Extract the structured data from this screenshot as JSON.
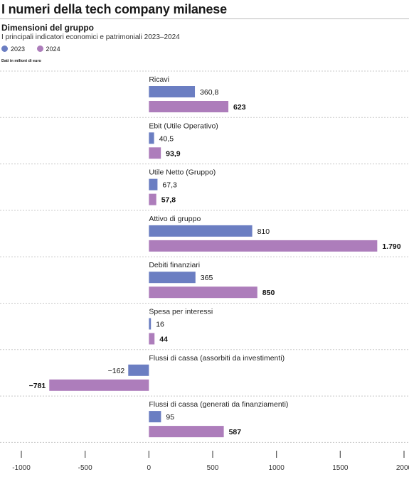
{
  "header": {
    "title": "I numeri della tech company milanese"
  },
  "colors": {
    "2023": "#6b7ec2",
    "2024": "#ad7dbb"
  },
  "chart_data": {
    "type": "bar",
    "orientation": "horizontal",
    "title": "Dimensioni del gruppo",
    "subtitle": "I principali indicatori economici e patrimoniali 2023–2024",
    "unit_note": "Dati in milioni di euro",
    "legend": [
      {
        "name": "2023",
        "color": "#6b7ec2"
      },
      {
        "name": "2024",
        "color": "#ad7dbb"
      }
    ],
    "legend_position": "top-left",
    "grid": false,
    "xlim": [
      -1000,
      2000
    ],
    "x_ticks": [
      -1000,
      -500,
      0,
      500,
      1000,
      1500,
      2000
    ],
    "x_tick_labels": [
      "-1000",
      "-500",
      "0",
      "500",
      "1000",
      "1500",
      "2000"
    ],
    "categories": [
      "Ricavi",
      "Ebit (Utile Operativo)",
      "Utile Netto (Gruppo)",
      "Attivo di gruppo",
      "Debiti finanziari",
      "Spesa per interessi",
      "Flussi di cassa (assorbiti da investimenti)",
      "Flussi di cassa (generati da finanziamenti)"
    ],
    "series": [
      {
        "name": "2023",
        "values": [
          360.8,
          40.5,
          67.3,
          810,
          365,
          16,
          -162,
          95
        ],
        "labels": [
          "360,8",
          "40,5",
          "67,3",
          "810",
          "365",
          "16",
          "−162",
          "95"
        ]
      },
      {
        "name": "2024",
        "values": [
          623,
          93.9,
          57.8,
          1790,
          850,
          44,
          -781,
          587
        ],
        "labels": [
          "623",
          "93,9",
          "57,8",
          "1.790",
          "850",
          "44",
          "−781",
          "587"
        ]
      }
    ]
  }
}
